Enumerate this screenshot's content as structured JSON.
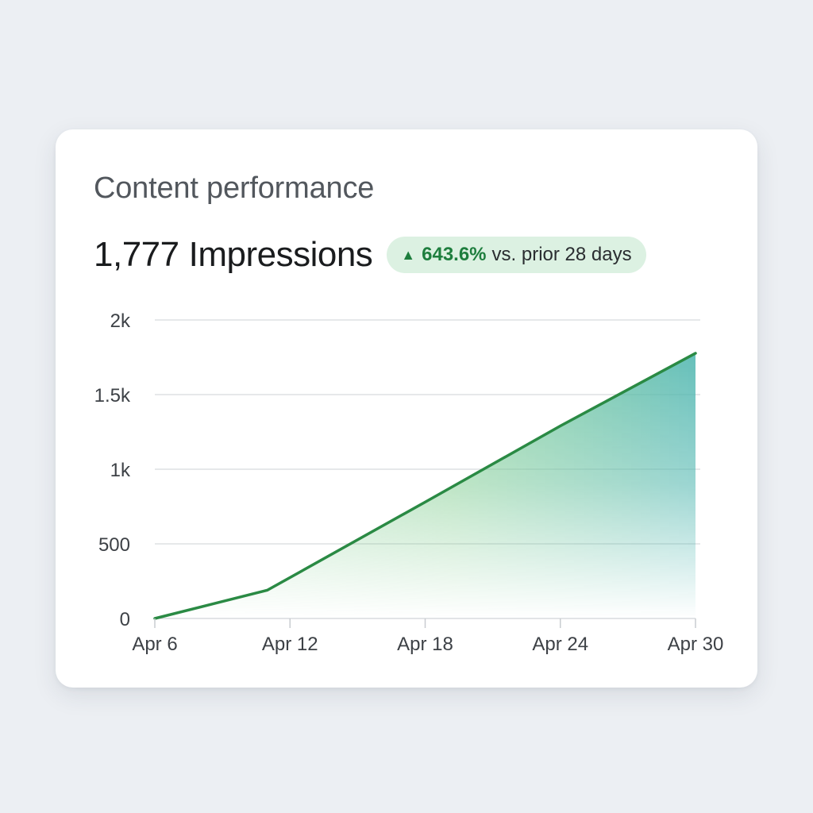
{
  "card": {
    "title": "Content performance",
    "metric_value": "1,777",
    "metric_label": "Impressions",
    "delta_arrow": "▲",
    "delta_value": "643.6%",
    "delta_suffix": "vs. prior 28 days"
  },
  "colors": {
    "line": "#2a8a44",
    "area_green": "#7fcc8e",
    "area_teal": "#4fb6b0",
    "badge_bg": "#dcf1e2",
    "badge_text": "#1e7e3e"
  },
  "chart_data": {
    "type": "area",
    "title": "",
    "xlabel": "",
    "ylabel": "",
    "x": [
      "2024-04-06",
      "2024-04-11",
      "2024-04-18",
      "2024-04-24",
      "2024-04-30"
    ],
    "series": [
      {
        "values": [
          0,
          190,
          780,
          1290,
          1777
        ]
      }
    ],
    "x_ticks": [
      {
        "date": "2024-04-06",
        "label": "Apr 6"
      },
      {
        "date": "2024-04-12",
        "label": "Apr 12"
      },
      {
        "date": "2024-04-18",
        "label": "Apr 18"
      },
      {
        "date": "2024-04-24",
        "label": "Apr 24"
      },
      {
        "date": "2024-04-30",
        "label": "Apr 30"
      }
    ],
    "y_ticks": [
      {
        "value": 0,
        "label": "0"
      },
      {
        "value": 500,
        "label": "500"
      },
      {
        "value": 1000,
        "label": "1k"
      },
      {
        "value": 1500,
        "label": "1.5k"
      },
      {
        "value": 2000,
        "label": "2k"
      }
    ],
    "ylim": [
      0,
      2000
    ],
    "xlim": [
      "2024-04-06",
      "2024-04-30"
    ],
    "grid": true,
    "legend": "none"
  }
}
